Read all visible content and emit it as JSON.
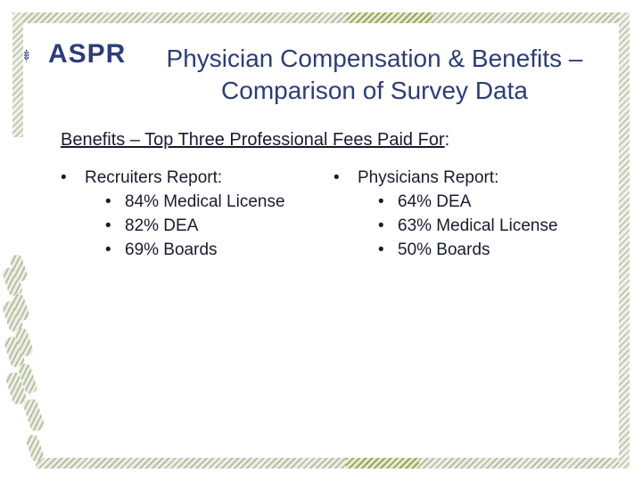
{
  "logo": {
    "text": "ASPR",
    "icon": "wheat-icon",
    "color": "#2c3d7a"
  },
  "title": {
    "line1": "Physician Compensation & Benefits –",
    "line2": "Comparison of Survey Data"
  },
  "subtitle": {
    "underlined": "Benefits – Top Three Professional Fees Paid For",
    "suffix": ":"
  },
  "recruiters": {
    "heading": "Recruiters Report:",
    "items": [
      "84% Medical License",
      "82% DEA",
      "69% Boards"
    ]
  },
  "physicians": {
    "heading": "Physicians Report:",
    "items": [
      "64% DEA",
      "63% Medical License",
      "50% Boards"
    ]
  },
  "colors": {
    "title": "#2c3d7a",
    "frame_accent": "#9aa55c"
  }
}
